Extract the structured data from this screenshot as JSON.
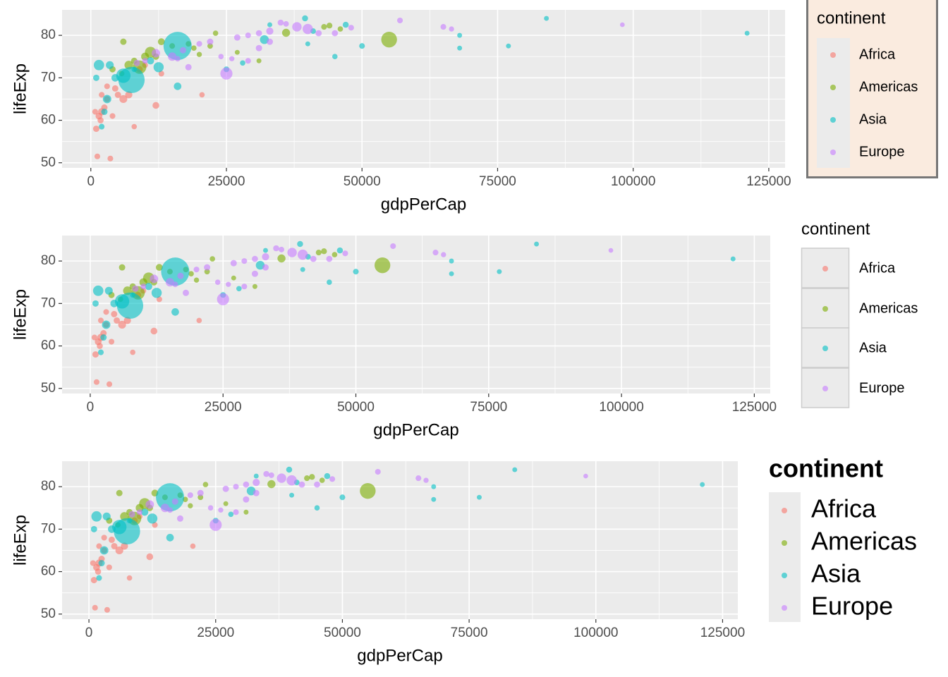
{
  "chart_data": [
    {
      "type": "scatter",
      "x_label": "gdpPerCap",
      "y_label": "lifeExp",
      "legend_title": "continent",
      "legend": "right",
      "xlim": [
        -5300,
        128000
      ],
      "ylim": [
        48.8,
        86
      ],
      "xticks": [
        0,
        25000,
        50000,
        75000,
        100000,
        125000
      ],
      "yticks": [
        50,
        60,
        70,
        80
      ],
      "grid": true,
      "series": [
        {
          "name": "Africa",
          "color": "#F8766D",
          "x": [
            800,
            1000,
            1200,
            3600,
            1500,
            2000,
            2500,
            3000,
            4000,
            5000,
            6000,
            7000,
            9000,
            12000,
            13000,
            20500,
            8000,
            3000,
            4500,
            2000,
            10000,
            1800
          ],
          "values": [
            62,
            58,
            51.5,
            51,
            61,
            62,
            63,
            65,
            61,
            66,
            65,
            66,
            72,
            63.5,
            71,
            66,
            58.5,
            68,
            67.5,
            66,
            73,
            60
          ],
          "sizes": [
            5,
            10,
            5,
            5,
            15,
            20,
            10,
            8,
            5,
            10,
            30,
            20,
            10,
            15,
            5,
            3,
            3,
            5,
            10,
            5,
            5,
            8
          ]
        },
        {
          "name": "Americas",
          "color": "#7CAE00",
          "x": [
            55000,
            36000,
            12000,
            9000,
            11000,
            13000,
            7000,
            6000,
            10000,
            8000,
            15000,
            18000,
            19000,
            23000,
            22000,
            31000,
            27000,
            5700,
            4000,
            43000,
            44000,
            46000,
            20000
          ],
          "values": [
            79,
            80.6,
            75,
            72.5,
            76,
            78.5,
            73,
            78.5,
            75,
            74,
            77.5,
            78,
            77,
            80.5,
            77.5,
            74,
            76,
            71,
            72,
            82,
            82.3,
            81.5,
            75.5
          ],
          "sizes": [
            300,
            33,
            12,
            190,
            108,
            16,
            44,
            10,
            30,
            10,
            5,
            4,
            3,
            3,
            4,
            1,
            1,
            3,
            9,
            5,
            6,
            3,
            2
          ]
        },
        {
          "name": "Asia",
          "color": "#00BFC4",
          "x": [
            33000,
            39500,
            84000,
            121000,
            68000,
            77000,
            68000,
            50000,
            45000,
            40000,
            16000,
            7500,
            3500,
            6000,
            12500,
            25000,
            28000,
            32000,
            2500,
            3000,
            2000,
            4500,
            8000,
            1000,
            1500,
            11000,
            47000,
            16000,
            41000
          ],
          "values": [
            82.5,
            84,
            84,
            80.5,
            80,
            77.5,
            77,
            77.5,
            75,
            78,
            77.5,
            69.5,
            73,
            70.5,
            72.5,
            72,
            73.5,
            79,
            62,
            65,
            58.5,
            70,
            72,
            70,
            73,
            74,
            82.5,
            68,
            81
          ],
          "sizes": [
            1,
            7,
            1,
            1,
            1,
            1,
            1,
            5,
            3,
            1,
            1300,
            1100,
            30,
            230,
            80,
            5,
            3,
            48,
            10,
            40,
            5,
            25,
            3,
            10,
            85,
            20,
            7,
            25,
            4
          ]
        },
        {
          "name": "Europe",
          "color": "#C77CFF",
          "x": [
            25000,
            15000,
            17000,
            20000,
            22000,
            27000,
            29000,
            31000,
            33000,
            35000,
            36000,
            38000,
            40000,
            42000,
            45000,
            48000,
            57000,
            65000,
            66500,
            98000,
            29000,
            24000,
            12000,
            16000,
            8500,
            10000,
            26000,
            18000,
            31000,
            33000
          ],
          "values": [
            71,
            75,
            76.5,
            78,
            78.5,
            79.5,
            80,
            80.5,
            81,
            83,
            82.7,
            82,
            81.5,
            80.5,
            80.5,
            81.8,
            83.5,
            82,
            81.5,
            82.5,
            74,
            75,
            75.8,
            74.5,
            73.5,
            74,
            74.5,
            72.5,
            77,
            78.5
          ],
          "sizes": [
            140,
            40,
            10,
            5,
            10,
            10,
            5,
            8,
            20,
            7,
            4,
            60,
            82,
            9,
            8,
            5,
            5,
            5,
            2,
            0.5,
            5,
            3,
            40,
            4,
            10,
            5,
            2,
            10,
            10,
            10
          ]
        }
      ]
    },
    {
      "type": "scatter",
      "x_label": "gdpPerCap",
      "y_label": "lifeExp",
      "legend_title": "continent",
      "legend": "right",
      "xlim": [
        -5300,
        128000
      ],
      "ylim": [
        48.8,
        86
      ],
      "xticks": [
        0,
        25000,
        50000,
        75000,
        100000,
        125000
      ],
      "yticks": [
        50,
        60,
        70,
        80
      ],
      "grid": true,
      "series": [
        {
          "name": "Africa",
          "color": "#F8766D",
          "x": [
            800,
            1000,
            1200,
            3600,
            1500,
            2000,
            2500,
            3000,
            4000,
            5000,
            6000,
            7000,
            9000,
            12000,
            13000,
            20500,
            8000,
            3000,
            4500,
            2000,
            10000,
            1800
          ],
          "values": [
            62,
            58,
            51.5,
            51,
            61,
            62,
            63,
            65,
            61,
            66,
            65,
            66,
            72,
            63.5,
            71,
            66,
            58.5,
            68,
            67.5,
            66,
            73,
            60
          ],
          "sizes": [
            5,
            10,
            5,
            5,
            15,
            20,
            10,
            8,
            5,
            10,
            30,
            20,
            10,
            15,
            5,
            3,
            3,
            5,
            10,
            5,
            5,
            8
          ]
        },
        {
          "name": "Americas",
          "color": "#7CAE00",
          "x": [
            55000,
            36000,
            12000,
            9000,
            11000,
            13000,
            7000,
            6000,
            10000,
            8000,
            15000,
            18000,
            19000,
            23000,
            22000,
            31000,
            27000,
            5700,
            4000,
            43000,
            44000,
            46000,
            20000
          ],
          "values": [
            79,
            80.6,
            75,
            72.5,
            76,
            78.5,
            73,
            78.5,
            75,
            74,
            77.5,
            78,
            77,
            80.5,
            77.5,
            74,
            76,
            71,
            72,
            82,
            82.3,
            81.5,
            75.5
          ],
          "sizes": [
            300,
            33,
            12,
            190,
            108,
            16,
            44,
            10,
            30,
            10,
            5,
            4,
            3,
            3,
            4,
            1,
            1,
            3,
            9,
            5,
            6,
            3,
            2
          ]
        },
        {
          "name": "Asia",
          "color": "#00BFC4",
          "x": [
            33000,
            39500,
            84000,
            121000,
            68000,
            77000,
            68000,
            50000,
            45000,
            40000,
            16000,
            7500,
            3500,
            6000,
            12500,
            25000,
            28000,
            32000,
            2500,
            3000,
            2000,
            4500,
            8000,
            1000,
            1500,
            11000,
            47000,
            16000,
            41000
          ],
          "values": [
            82.5,
            84,
            84,
            80.5,
            80,
            77.5,
            77,
            77.5,
            75,
            78,
            77.5,
            69.5,
            73,
            70.5,
            72.5,
            72,
            73.5,
            79,
            62,
            65,
            58.5,
            70,
            72,
            70,
            73,
            74,
            82.5,
            68,
            81
          ],
          "sizes": [
            1,
            7,
            1,
            1,
            1,
            1,
            1,
            5,
            3,
            1,
            1300,
            1100,
            30,
            230,
            80,
            5,
            3,
            48,
            10,
            40,
            5,
            25,
            3,
            10,
            85,
            20,
            7,
            25,
            4
          ]
        },
        {
          "name": "Europe",
          "color": "#C77CFF",
          "x": [
            25000,
            15000,
            17000,
            20000,
            22000,
            27000,
            29000,
            31000,
            33000,
            35000,
            36000,
            38000,
            40000,
            42000,
            45000,
            48000,
            57000,
            65000,
            66500,
            98000,
            29000,
            24000,
            12000,
            16000,
            8500,
            10000,
            26000,
            18000,
            31000,
            33000
          ],
          "values": [
            71,
            75,
            76.5,
            78,
            78.5,
            79.5,
            80,
            80.5,
            81,
            83,
            82.7,
            82,
            81.5,
            80.5,
            80.5,
            81.8,
            83.5,
            82,
            81.5,
            82.5,
            74,
            75,
            75.8,
            74.5,
            73.5,
            74,
            74.5,
            72.5,
            77,
            78.5
          ],
          "sizes": [
            140,
            40,
            10,
            5,
            10,
            10,
            5,
            8,
            20,
            7,
            4,
            60,
            82,
            9,
            8,
            5,
            5,
            5,
            2,
            0.5,
            5,
            3,
            40,
            4,
            10,
            5,
            2,
            10,
            10,
            10
          ]
        }
      ]
    },
    {
      "type": "scatter",
      "x_label": "gdpPerCap",
      "y_label": "lifeExp",
      "legend_title": "continent",
      "legend": "right",
      "xlim": [
        -5300,
        128000
      ],
      "ylim": [
        48.8,
        86
      ],
      "xticks": [
        0,
        25000,
        50000,
        75000,
        100000,
        125000
      ],
      "yticks": [
        50,
        60,
        70,
        80
      ],
      "grid": true,
      "series": [
        {
          "name": "Africa",
          "color": "#F8766D",
          "x": [
            800,
            1000,
            1200,
            3600,
            1500,
            2000,
            2500,
            3000,
            4000,
            5000,
            6000,
            7000,
            9000,
            12000,
            13000,
            20500,
            8000,
            3000,
            4500,
            2000,
            10000,
            1800
          ],
          "values": [
            62,
            58,
            51.5,
            51,
            61,
            62,
            63,
            65,
            61,
            66,
            65,
            66,
            72,
            63.5,
            71,
            66,
            58.5,
            68,
            67.5,
            66,
            73,
            60
          ],
          "sizes": [
            5,
            10,
            5,
            5,
            15,
            20,
            10,
            8,
            5,
            10,
            30,
            20,
            10,
            15,
            5,
            3,
            3,
            5,
            10,
            5,
            5,
            8
          ]
        },
        {
          "name": "Americas",
          "color": "#7CAE00",
          "x": [
            55000,
            36000,
            12000,
            9000,
            11000,
            13000,
            7000,
            6000,
            10000,
            8000,
            15000,
            18000,
            19000,
            23000,
            22000,
            31000,
            27000,
            5700,
            4000,
            43000,
            44000,
            46000,
            20000
          ],
          "values": [
            79,
            80.6,
            75,
            72.5,
            76,
            78.5,
            73,
            78.5,
            75,
            74,
            77.5,
            78,
            77,
            80.5,
            77.5,
            74,
            76,
            71,
            72,
            82,
            82.3,
            81.5,
            75.5
          ],
          "sizes": [
            300,
            33,
            12,
            190,
            108,
            16,
            44,
            10,
            30,
            10,
            5,
            4,
            3,
            3,
            4,
            1,
            1,
            3,
            9,
            5,
            6,
            3,
            2
          ]
        },
        {
          "name": "Asia",
          "color": "#00BFC4",
          "x": [
            33000,
            39500,
            84000,
            121000,
            68000,
            77000,
            68000,
            50000,
            45000,
            40000,
            16000,
            7500,
            3500,
            6000,
            12500,
            25000,
            28000,
            32000,
            2500,
            3000,
            2000,
            4500,
            8000,
            1000,
            1500,
            11000,
            47000,
            16000,
            41000
          ],
          "values": [
            82.5,
            84,
            84,
            80.5,
            80,
            77.5,
            77,
            77.5,
            75,
            78,
            77.5,
            69.5,
            73,
            70.5,
            72.5,
            72,
            73.5,
            79,
            62,
            65,
            58.5,
            70,
            72,
            70,
            73,
            74,
            82.5,
            68,
            81
          ],
          "sizes": [
            1,
            7,
            1,
            1,
            1,
            1,
            1,
            5,
            3,
            1,
            1300,
            1100,
            30,
            230,
            80,
            5,
            3,
            48,
            10,
            40,
            5,
            25,
            3,
            10,
            85,
            20,
            7,
            25,
            4
          ]
        },
        {
          "name": "Europe",
          "color": "#C77CFF",
          "x": [
            25000,
            15000,
            17000,
            20000,
            22000,
            27000,
            29000,
            31000,
            33000,
            35000,
            36000,
            38000,
            40000,
            42000,
            45000,
            48000,
            57000,
            65000,
            66500,
            98000,
            29000,
            24000,
            12000,
            16000,
            8500,
            10000,
            26000,
            18000,
            31000,
            33000
          ],
          "values": [
            71,
            75,
            76.5,
            78,
            78.5,
            79.5,
            80,
            80.5,
            81,
            83,
            82.7,
            82,
            81.5,
            80.5,
            80.5,
            81.8,
            83.5,
            82,
            81.5,
            82.5,
            74,
            75,
            75.8,
            74.5,
            73.5,
            74,
            74.5,
            72.5,
            77,
            78.5
          ],
          "sizes": [
            140,
            40,
            10,
            5,
            10,
            10,
            5,
            8,
            20,
            7,
            4,
            60,
            82,
            9,
            8,
            5,
            5,
            5,
            2,
            0.5,
            5,
            3,
            40,
            4,
            10,
            5,
            2,
            10,
            10,
            10
          ]
        }
      ]
    }
  ]
}
